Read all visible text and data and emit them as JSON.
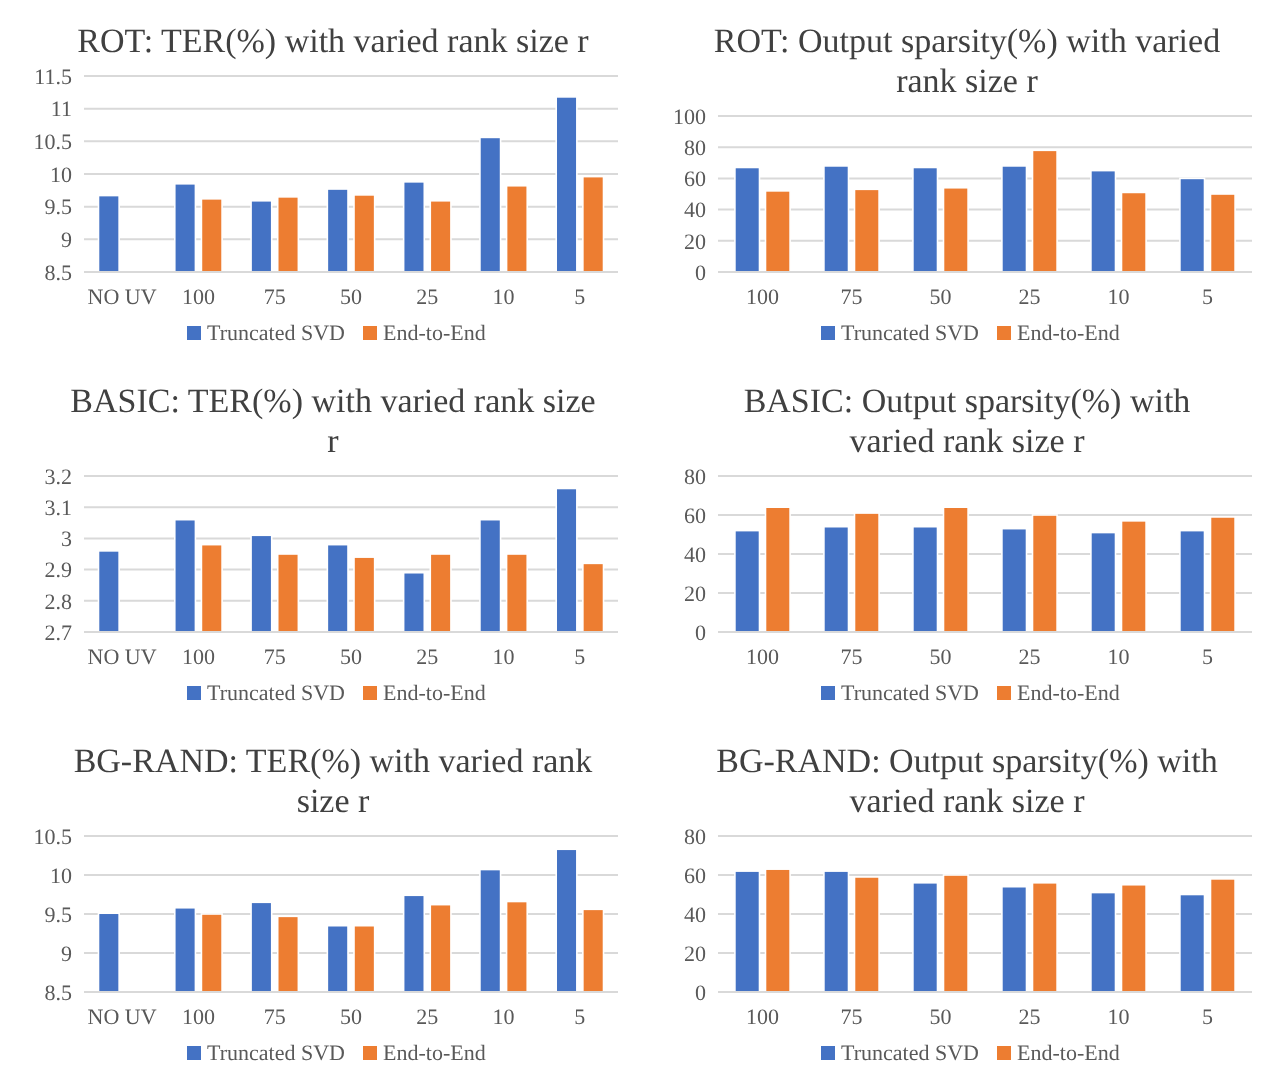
{
  "chart_data": [
    {
      "type": "bar",
      "title": "ROT: TER(%) with varied rank size r",
      "categories": [
        "NO UV",
        "100",
        "75",
        "50",
        "25",
        "10",
        "5"
      ],
      "ylim": [
        8.5,
        11.5
      ],
      "yticks": [
        8.5,
        9,
        9.5,
        10,
        10.5,
        11,
        11.5
      ],
      "grid": "y",
      "legend": "bottom",
      "series": [
        {
          "name": "Truncated SVD",
          "color": "#4472c4",
          "values": [
            9.67,
            9.85,
            9.59,
            9.77,
            9.88,
            10.56,
            11.18
          ]
        },
        {
          "name": "End-to-End",
          "color": "#ed7d31",
          "values": [
            null,
            9.62,
            9.65,
            9.68,
            9.59,
            9.82,
            9.96
          ]
        }
      ]
    },
    {
      "type": "bar",
      "title": "ROT: Output sparsity(%) with varied rank size r",
      "categories": [
        "100",
        "75",
        "50",
        "25",
        "10",
        "5"
      ],
      "ylim": [
        0,
        100
      ],
      "yticks": [
        0,
        20,
        40,
        60,
        80,
        100
      ],
      "grid": "y",
      "legend": "bottom",
      "series": [
        {
          "name": "Truncated SVD",
          "color": "#4472c4",
          "values": [
            67,
            68,
            67,
            68,
            65,
            60
          ]
        },
        {
          "name": "End-to-End",
          "color": "#ed7d31",
          "values": [
            52,
            53,
            54,
            78,
            51,
            50
          ]
        }
      ]
    },
    {
      "type": "bar",
      "title": "BASIC: TER(%) with varied rank size r",
      "categories": [
        "NO UV",
        "100",
        "75",
        "50",
        "25",
        "10",
        "5"
      ],
      "ylim": [
        2.7,
        3.2
      ],
      "yticks": [
        2.7,
        2.8,
        2.9,
        3,
        3.1,
        3.2
      ],
      "grid": "y",
      "legend": "bottom",
      "series": [
        {
          "name": "Truncated SVD",
          "color": "#4472c4",
          "values": [
            2.96,
            3.06,
            3.01,
            2.98,
            2.89,
            3.06,
            3.16
          ]
        },
        {
          "name": "End-to-End",
          "color": "#ed7d31",
          "values": [
            null,
            2.98,
            2.95,
            2.94,
            2.95,
            2.95,
            2.92
          ]
        }
      ]
    },
    {
      "type": "bar",
      "title": "BASIC: Output sparsity(%) with varied rank size r",
      "categories": [
        "100",
        "75",
        "50",
        "25",
        "10",
        "5"
      ],
      "ylim": [
        0,
        80
      ],
      "yticks": [
        0,
        20,
        40,
        60,
        80
      ],
      "grid": "y",
      "legend": "bottom",
      "series": [
        {
          "name": "Truncated SVD",
          "color": "#4472c4",
          "values": [
            52,
            54,
            54,
            53,
            51,
            52
          ]
        },
        {
          "name": "End-to-End",
          "color": "#ed7d31",
          "values": [
            64,
            61,
            64,
            60,
            57,
            59
          ]
        }
      ]
    },
    {
      "type": "bar",
      "title": "BG-RAND: TER(%) with varied rank size r",
      "categories": [
        "NO UV",
        "100",
        "75",
        "50",
        "25",
        "10",
        "5"
      ],
      "ylim": [
        8.5,
        10.5
      ],
      "yticks": [
        8.5,
        9,
        9.5,
        10,
        10.5
      ],
      "grid": "y",
      "legend": "bottom",
      "series": [
        {
          "name": "Truncated SVD",
          "color": "#4472c4",
          "values": [
            9.51,
            9.58,
            9.65,
            9.35,
            9.74,
            10.07,
            10.33
          ]
        },
        {
          "name": "End-to-End",
          "color": "#ed7d31",
          "values": [
            null,
            9.5,
            9.47,
            9.35,
            9.62,
            9.66,
            9.56
          ]
        }
      ]
    },
    {
      "type": "bar",
      "title": "BG-RAND: Output sparsity(%) with varied rank size r",
      "categories": [
        "100",
        "75",
        "50",
        "25",
        "10",
        "5"
      ],
      "ylim": [
        0,
        80
      ],
      "yticks": [
        0,
        20,
        40,
        60,
        80
      ],
      "grid": "y",
      "legend": "bottom",
      "series": [
        {
          "name": "Truncated SVD",
          "color": "#4472c4",
          "values": [
            62,
            62,
            56,
            54,
            51,
            50
          ]
        },
        {
          "name": "End-to-End",
          "color": "#ed7d31",
          "values": [
            63,
            59,
            60,
            56,
            55,
            58
          ]
        }
      ]
    }
  ]
}
